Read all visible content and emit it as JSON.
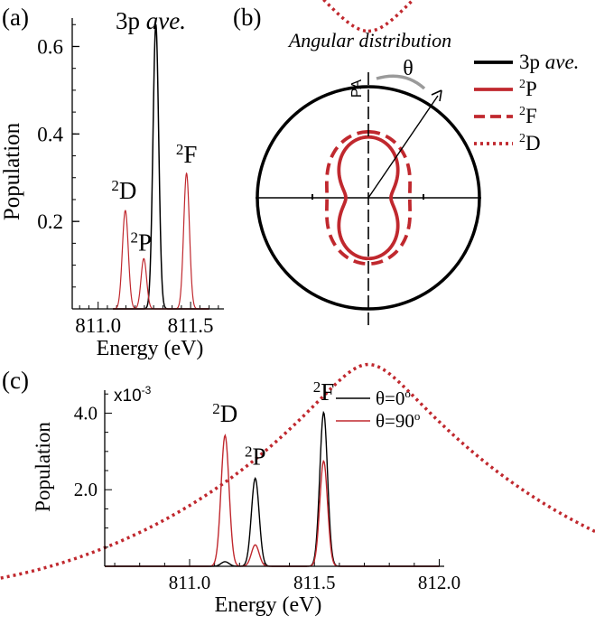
{
  "chart_data": [
    {
      "panel": "(a)",
      "type": "line",
      "title": "3p ave.",
      "title_main": "3p",
      "title_italic": "ave.",
      "xlabel": "Energy (eV)",
      "ylabel": "Population",
      "xlim": [
        810.86,
        811.68
      ],
      "ylim": [
        0.0,
        0.665
      ],
      "xticks": [
        {
          "value": 811.0,
          "label": "811.0"
        },
        {
          "value": 811.5,
          "label": "811.5"
        }
      ],
      "yticks": [
        {
          "value": 0.2,
          "label": "0.2"
        },
        {
          "value": 0.4,
          "label": "0.4"
        },
        {
          "value": 0.6,
          "label": "0.6"
        }
      ],
      "series": [
        {
          "name": "3p ave.",
          "color": "#000000",
          "width": 1.5,
          "peaks": [
            {
              "center": 811.312,
              "height": 0.65,
              "sigma": 0.0155
            }
          ]
        },
        {
          "name": "2D",
          "color": "#c0282e",
          "width": 1.2,
          "peaks": [
            {
              "center": 811.147,
              "height": 0.225,
              "sigma": 0.016
            }
          ]
        },
        {
          "name": "2P",
          "color": "#c0282e",
          "width": 1.2,
          "peaks": [
            {
              "center": 811.247,
              "height": 0.115,
              "sigma": 0.015
            }
          ]
        },
        {
          "name": "2F",
          "color": "#c0282e",
          "width": 1.2,
          "peaks": [
            {
              "center": 811.478,
              "height": 0.31,
              "sigma": 0.0155
            }
          ]
        }
      ],
      "annotations": [
        {
          "sup": "2",
          "text": "D",
          "x": 811.14,
          "y": 0.252
        },
        {
          "sup": "2",
          "text": "P",
          "x": 811.232,
          "y": 0.133
        },
        {
          "sup": "2",
          "text": "F",
          "x": 811.478,
          "y": 0.335
        }
      ]
    },
    {
      "panel": "(b)",
      "type": "polar",
      "title": "Angular distribution",
      "axis_label": "PA",
      "angle_label": "θ",
      "legend": [
        {
          "label_main": "3p",
          "label_italic": "ave.",
          "sup": "",
          "style": "solid",
          "color": "#000000"
        },
        {
          "label_main": "P",
          "label_italic": "",
          "sup": "2",
          "style": "solid",
          "color": "#c0282e"
        },
        {
          "label_main": "F",
          "label_italic": "",
          "sup": "2",
          "style": "dashed",
          "color": "#c0282e"
        },
        {
          "label_main": "D",
          "label_italic": "",
          "sup": "2",
          "style": "dotted",
          "color": "#c0282e"
        }
      ],
      "series": [
        {
          "name": "3p ave.",
          "beta2": 0.0,
          "scale": 1.0
        },
        {
          "name": "2P",
          "beta2": 0.72,
          "scale": 0.547
        },
        {
          "name": "2F",
          "beta2": 0.33,
          "scale": 0.594
        },
        {
          "name": "2D",
          "beta2": -0.75,
          "scale": 1.5
        }
      ]
    },
    {
      "panel": "(c)",
      "type": "line",
      "xlabel": "Energy (eV)",
      "ylabel": "Population",
      "multiplier": "x10",
      "multiplier_exp": "-3",
      "xlim": [
        810.66,
        812.02
      ],
      "ylim": [
        0.0,
        4.6
      ],
      "xticks": [
        {
          "value": 811.0,
          "label": "811.0"
        },
        {
          "value": 811.5,
          "label": "811.5"
        },
        {
          "value": 812.0,
          "label": "812.0"
        }
      ],
      "yticks": [
        {
          "value": 2.0,
          "label": "2.0"
        },
        {
          "value": 4.0,
          "label": "4.0"
        }
      ],
      "series": [
        {
          "name": "θ=0°",
          "label": "θ=0",
          "sup": "o",
          "color": "#000000",
          "width": 1.4,
          "peaks": [
            {
              "center": 811.142,
              "height": 0.12,
              "sigma": 0.016
            },
            {
              "center": 811.263,
              "height": 2.3,
              "sigma": 0.0155
            },
            {
              "center": 811.537,
              "height": 4.02,
              "sigma": 0.0155
            }
          ]
        },
        {
          "name": "θ=90°",
          "label": "θ=90",
          "sup": "o",
          "color": "#c0282e",
          "width": 1.4,
          "peaks": [
            {
              "center": 811.142,
              "height": 3.42,
              "sigma": 0.016
            },
            {
              "center": 811.263,
              "height": 0.56,
              "sigma": 0.0155
            },
            {
              "center": 811.537,
              "height": 2.75,
              "sigma": 0.0155
            }
          ]
        }
      ],
      "annotations": [
        {
          "sup": "2",
          "text": "D",
          "x": 811.142,
          "y": 3.78
        },
        {
          "sup": "2",
          "text": "P",
          "x": 811.263,
          "y": 2.65
        },
        {
          "sup": "2",
          "text": "F",
          "x": 811.537,
          "y": 4.34
        }
      ]
    }
  ]
}
